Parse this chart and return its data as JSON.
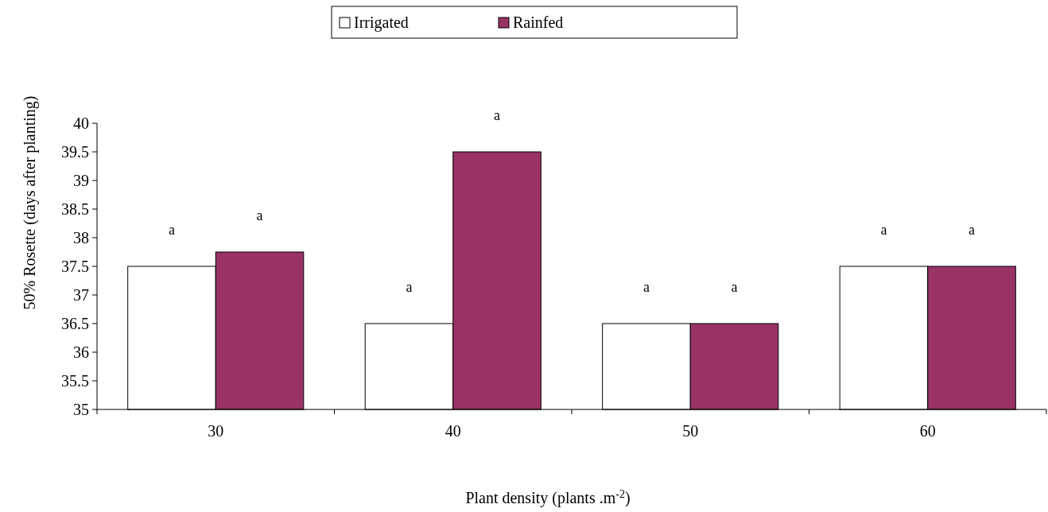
{
  "chart_data": {
    "type": "bar",
    "categories": [
      "30",
      "40",
      "50",
      "60"
    ],
    "series": [
      {
        "name": "Irrigated",
        "color": "#ffffff",
        "values": [
          37.5,
          36.5,
          36.5,
          37.5
        ],
        "value_labels": [
          "a",
          "a",
          "a",
          "a"
        ]
      },
      {
        "name": "Rainfed",
        "color": "#993366",
        "values": [
          37.75,
          39.5,
          36.5,
          37.5
        ],
        "value_labels": [
          "a",
          "a",
          "a",
          "a"
        ]
      }
    ],
    "xlabel": "Plant density  (plants .m$^{-2}$)",
    "ylabel": "50%   Rosette  (days after planting)",
    "ylim": [
      35,
      40
    ],
    "yticks": [
      35,
      35.5,
      36,
      36.5,
      37,
      37.5,
      38,
      38.5,
      39,
      39.5,
      40
    ],
    "grid": false,
    "legend": "top"
  }
}
